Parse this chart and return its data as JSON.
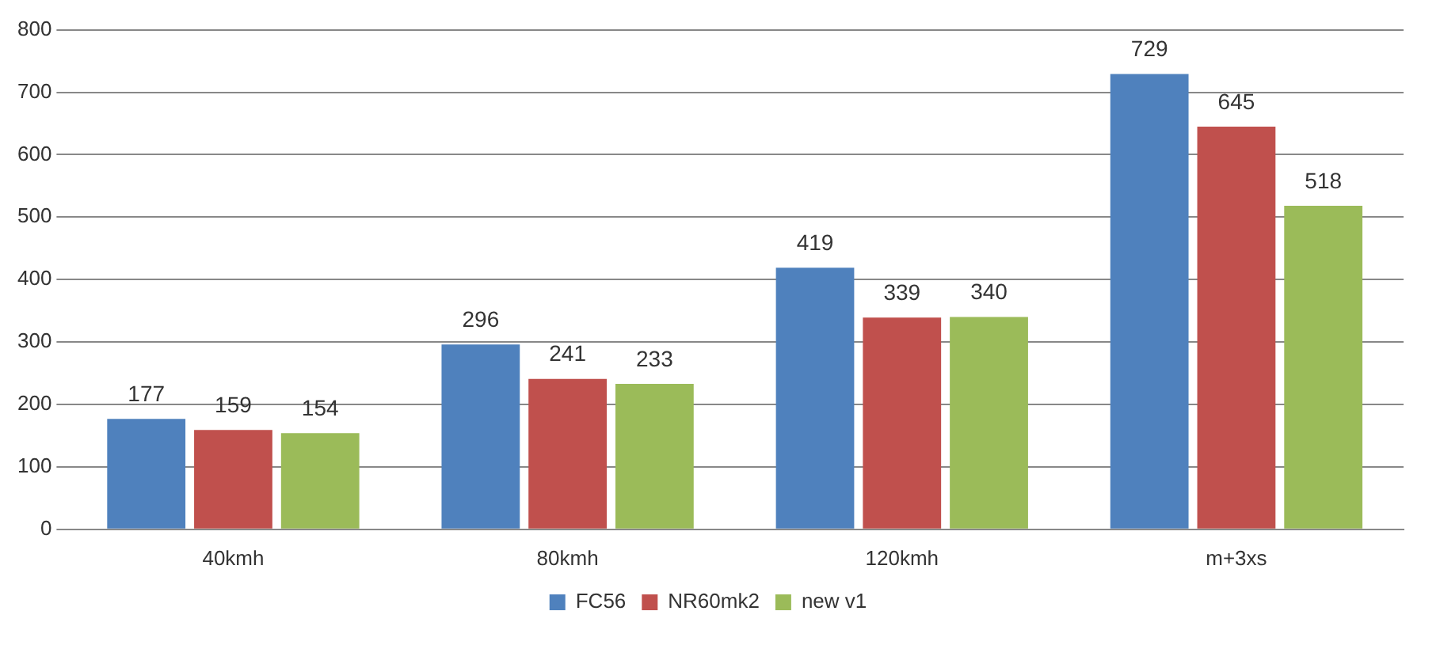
{
  "chart_data": {
    "type": "bar",
    "categories": [
      "40kmh",
      "80kmh",
      "120kmh",
      "m+3xs"
    ],
    "series": [
      {
        "name": "FC56",
        "color": "#4f81bd",
        "values": [
          177,
          296,
          419,
          729
        ]
      },
      {
        "name": "NR60mk2",
        "color": "#c0504d",
        "values": [
          159,
          241,
          339,
          645
        ]
      },
      {
        "name": "new v1",
        "color": "#9bbb59",
        "values": [
          154,
          233,
          340,
          518
        ]
      }
    ],
    "ylim": [
      0,
      800
    ],
    "yticks": [
      0,
      100,
      200,
      300,
      400,
      500,
      600,
      700,
      800
    ],
    "grid": "y",
    "legend": "bottom",
    "data_labels": true
  }
}
